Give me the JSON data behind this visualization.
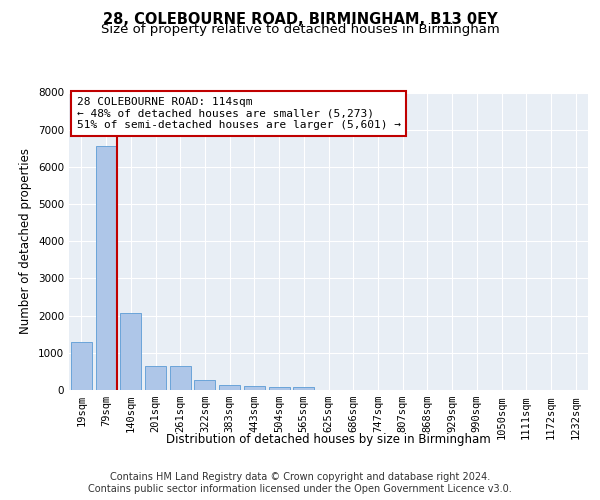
{
  "title_line1": "28, COLEBOURNE ROAD, BIRMINGHAM, B13 0EY",
  "title_line2": "Size of property relative to detached houses in Birmingham",
  "xlabel": "Distribution of detached houses by size in Birmingham",
  "ylabel": "Number of detached properties",
  "bar_labels": [
    "19sqm",
    "79sqm",
    "140sqm",
    "201sqm",
    "261sqm",
    "322sqm",
    "383sqm",
    "443sqm",
    "504sqm",
    "565sqm",
    "625sqm",
    "686sqm",
    "747sqm",
    "807sqm",
    "868sqm",
    "929sqm",
    "990sqm",
    "1050sqm",
    "1111sqm",
    "1172sqm",
    "1232sqm"
  ],
  "bar_values": [
    1300,
    6550,
    2080,
    650,
    640,
    260,
    130,
    110,
    80,
    75,
    0,
    0,
    0,
    0,
    0,
    0,
    0,
    0,
    0,
    0,
    0
  ],
  "bar_color": "#aec6e8",
  "bar_edge_color": "#5b9bd5",
  "vline_pos": 1.45,
  "vline_color": "#c00000",
  "annotation_text": "28 COLEBOURNE ROAD: 114sqm\n← 48% of detached houses are smaller (5,273)\n51% of semi-detached houses are larger (5,601) →",
  "annotation_box_color": "#ffffff",
  "annotation_box_edge_color": "#c00000",
  "ylim": [
    0,
    8000
  ],
  "yticks": [
    0,
    1000,
    2000,
    3000,
    4000,
    5000,
    6000,
    7000,
    8000
  ],
  "bg_color": "#e8eef5",
  "footer_line1": "Contains HM Land Registry data © Crown copyright and database right 2024.",
  "footer_line2": "Contains public sector information licensed under the Open Government Licence v3.0.",
  "title_fontsize": 10.5,
  "subtitle_fontsize": 9.5,
  "axis_label_fontsize": 8.5,
  "tick_fontsize": 7.5,
  "annotation_fontsize": 8,
  "footer_fontsize": 7
}
